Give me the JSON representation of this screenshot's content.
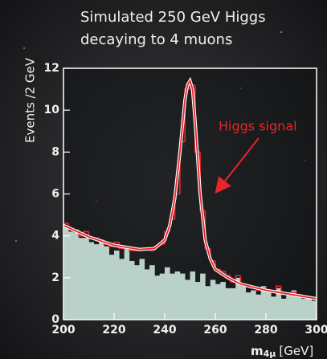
{
  "chart_data": {
    "type": "histogram",
    "title": [
      "Simulated 250 GeV Higgs",
      "decaying to 4 muons"
    ],
    "y_label": "Events /2 GeV",
    "x_label": {
      "main": "m",
      "sub": "4μ",
      "unit": "[GeV]"
    },
    "annotation": "Higgs signal",
    "bins": [
      200,
      202,
      204,
      206,
      208,
      210,
      212,
      214,
      216,
      218,
      220,
      222,
      224,
      226,
      228,
      230,
      232,
      234,
      236,
      238,
      240,
      242,
      244,
      246,
      248,
      250,
      252,
      254,
      256,
      258,
      260,
      262,
      264,
      266,
      268,
      270,
      272,
      274,
      276,
      278,
      280,
      282,
      284,
      286,
      288,
      290,
      292,
      294,
      296,
      298,
      300
    ],
    "series": [
      {
        "style": "filled",
        "color": "#b9d1c9",
        "values": [
          4.4,
          4.2,
          4.3,
          3.9,
          3.9,
          3.7,
          3.6,
          3.8,
          3.5,
          3.1,
          3.3,
          2.9,
          3.5,
          2.8,
          2.6,
          2.9,
          2.4,
          2.6,
          2.1,
          2.2,
          2.5,
          2.2,
          2.3,
          2.2,
          1.9,
          2.3,
          1.8,
          2.2,
          1.6,
          1.9,
          1.7,
          1.8,
          1.5,
          1.5,
          2.0,
          1.6,
          1.3,
          1.4,
          1.2,
          1.6,
          1.4,
          1.1,
          1.5,
          1.0,
          1.3,
          1.4,
          1.2,
          1.0,
          1.1,
          0.9
        ]
      },
      {
        "style": "step",
        "color": "#e8252a",
        "values": [
          4.6,
          4.3,
          4.2,
          4.0,
          4.2,
          3.9,
          3.9,
          3.8,
          3.6,
          3.5,
          3.7,
          3.4,
          3.4,
          3.3,
          3.3,
          3.4,
          3.4,
          3.3,
          3.5,
          3.6,
          4.2,
          4.8,
          6.0,
          8.5,
          11.0,
          11.2,
          8.0,
          5.2,
          3.4,
          2.8,
          2.4,
          2.3,
          2.1,
          1.8,
          2.1,
          1.7,
          1.6,
          1.5,
          1.4,
          1.5,
          1.4,
          1.3,
          1.6,
          1.2,
          1.2,
          1.3,
          1.2,
          1.1,
          1.1,
          1.0
        ]
      }
    ],
    "fit": {
      "color": "#e8252a",
      "x": [
        200,
        210,
        220,
        230,
        236,
        240,
        242,
        244,
        246,
        248,
        249,
        250,
        251,
        252,
        254,
        256,
        258,
        260,
        265,
        270,
        280,
        290,
        300
      ],
      "values": [
        4.5,
        3.95,
        3.55,
        3.35,
        3.4,
        3.8,
        4.5,
        5.8,
        8.0,
        10.5,
        11.2,
        11.4,
        11.0,
        9.5,
        6.0,
        3.8,
        2.9,
        2.4,
        2.0,
        1.7,
        1.4,
        1.2,
        1.0
      ]
    },
    "xlim": [
      200,
      300
    ],
    "ylim": [
      0,
      12
    ],
    "xticks": [
      200,
      220,
      240,
      260,
      280,
      300
    ],
    "yticks": [
      0,
      2,
      4,
      6,
      8,
      10,
      12
    ]
  }
}
